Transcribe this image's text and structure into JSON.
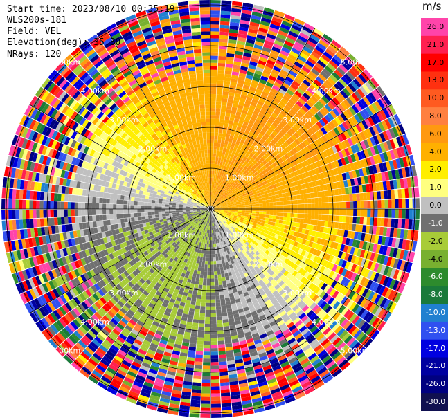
{
  "header": {
    "start_time": "Start time: 2023/08/10 00:35:19",
    "instrument": "WLS200s-181",
    "field": "Field: VEL",
    "elevation": "Elevation(deg): 35.30",
    "nrays": "NRays: 120"
  },
  "colorbar": {
    "unit": "m/s",
    "ticks": [
      "26.0",
      "21.0",
      "17.0",
      "13.0",
      "10.0",
      "8.0",
      "6.0",
      "4.0",
      "2.0",
      "1.0",
      "0.0",
      "-1.0",
      "-2.0",
      "-4.0",
      "-6.0",
      "-8.0",
      "-10.0",
      "-13.0",
      "-17.0",
      "-21.0",
      "-26.0",
      "-30.0"
    ],
    "colors": [
      "#ff44aa",
      "#ff2050",
      "#ff0000",
      "#ff3010",
      "#ff5a20",
      "#ff8040",
      "#ff9910",
      "#ffb000",
      "#ffee00",
      "#ffff80",
      "#c0c0c0",
      "#707070",
      "#a8cc38",
      "#78b030",
      "#2d8b2d",
      "#1a7a3a",
      "#2080d0",
      "#3050f0",
      "#0000e0",
      "#0000a0",
      "#000080",
      "#101050"
    ]
  },
  "chart_data": {
    "type": "ppi",
    "field": "VEL",
    "unit": "m/s",
    "nrays": 120,
    "elevation_deg": 35.3,
    "range_rings_km": [
      1.0,
      2.0,
      3.0,
      4.0,
      5.0
    ],
    "ring_labels": [
      "1.00km",
      "2.00km",
      "3.00km",
      "4.00km",
      "5.00km"
    ],
    "colorbar_ticks": [
      26.0,
      21.0,
      17.0,
      13.0,
      10.0,
      8.0,
      6.0,
      4.0,
      2.0,
      1.0,
      0.0,
      -1.0,
      -2.0,
      -4.0,
      -6.0,
      -8.0,
      -10.0,
      -13.0,
      -17.0,
      -21.0,
      -26.0,
      -30.0
    ],
    "vlim": [
      -30.0,
      26.0
    ]
  }
}
